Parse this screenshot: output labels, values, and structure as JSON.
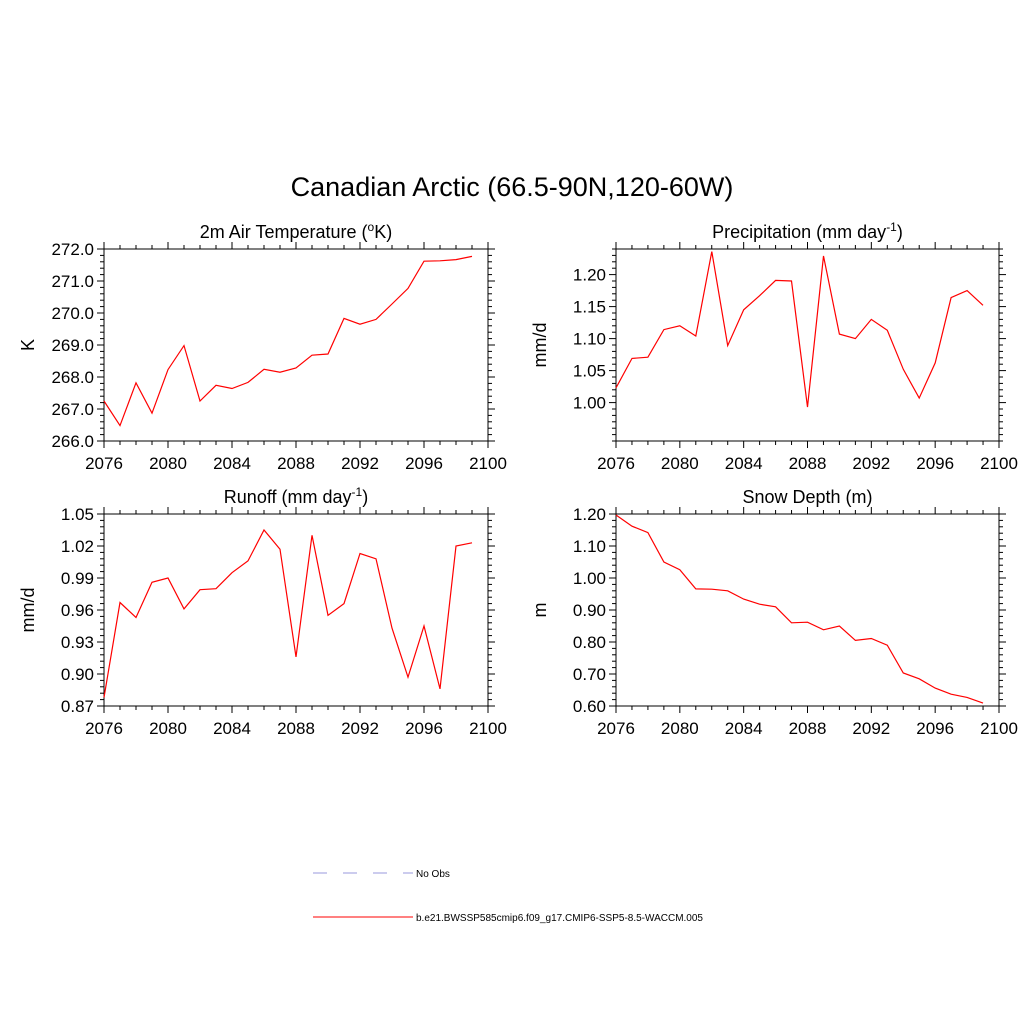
{
  "main_title": "Canadian Arctic (66.5-90N,120-60W)",
  "line_color": "#ff0000",
  "obs_color": "#9999dd",
  "chart_data": [
    {
      "type": "line",
      "title": "2m Air Temperature (°K)",
      "title_parts": [
        "2m Air Temperature (",
        "o",
        "K)"
      ],
      "ylabel": "K",
      "xlim": [
        2076,
        2100
      ],
      "ylim": [
        266.0,
        272.0
      ],
      "xticks": [
        2076,
        2080,
        2084,
        2088,
        2092,
        2096,
        2100
      ],
      "yticks": [
        "266.0",
        "267.0",
        "268.0",
        "269.0",
        "270.0",
        "271.0",
        "272.0"
      ],
      "ytick_values": [
        266,
        267,
        268,
        269,
        270,
        271,
        272
      ],
      "x": [
        2076,
        2077,
        2078,
        2079,
        2080,
        2081,
        2082,
        2083,
        2084,
        2085,
        2086,
        2087,
        2088,
        2089,
        2090,
        2091,
        2092,
        2093,
        2094,
        2095,
        2096,
        2097,
        2098,
        2099
      ],
      "series": [
        {
          "name": "b.e21.BWSSP585cmip6.f09_g17.CMIP6-SSP5-8.5-WACCM.005",
          "values": [
            267.25,
            266.48,
            267.82,
            266.87,
            268.23,
            268.98,
            267.25,
            267.74,
            267.64,
            267.83,
            268.24,
            268.15,
            268.28,
            268.68,
            268.72,
            269.83,
            269.65,
            269.8,
            270.28,
            270.77,
            271.62,
            271.63,
            271.67,
            271.77
          ]
        }
      ]
    },
    {
      "type": "line",
      "title": "Precipitation (mm day-1)",
      "title_parts": [
        "Precipitation (mm day",
        "-1",
        ")"
      ],
      "ylabel": "mm/d",
      "xlim": [
        2076,
        2100
      ],
      "ylim": [
        0.94,
        1.24
      ],
      "xticks": [
        2076,
        2080,
        2084,
        2088,
        2092,
        2096,
        2100
      ],
      "yticks": [
        "1.00",
        "1.05",
        "1.10",
        "1.15",
        "1.20"
      ],
      "ytick_values": [
        1.0,
        1.05,
        1.1,
        1.15,
        1.2
      ],
      "x": [
        2076,
        2077,
        2078,
        2079,
        2080,
        2081,
        2082,
        2083,
        2084,
        2085,
        2086,
        2087,
        2088,
        2089,
        2090,
        2091,
        2092,
        2093,
        2094,
        2095,
        2096,
        2097,
        2098,
        2099
      ],
      "series": [
        {
          "name": "b.e21.BWSSP585cmip6.f09_g17.CMIP6-SSP5-8.5-WACCM.005",
          "values": [
            1.023,
            1.069,
            1.071,
            1.114,
            1.12,
            1.104,
            1.236,
            1.089,
            1.145,
            1.167,
            1.191,
            1.19,
            0.993,
            1.229,
            1.107,
            1.1,
            1.13,
            1.113,
            1.052,
            1.007,
            1.062,
            1.164,
            1.175,
            1.152
          ]
        }
      ]
    },
    {
      "type": "line",
      "title": "Runoff (mm day-1)",
      "title_parts": [
        "Runoff (mm day",
        "-1",
        ")"
      ],
      "ylabel": "mm/d",
      "xlim": [
        2076,
        2100
      ],
      "ylim": [
        0.87,
        1.05
      ],
      "xticks": [
        2076,
        2080,
        2084,
        2088,
        2092,
        2096,
        2100
      ],
      "yticks": [
        "0.87",
        "0.90",
        "0.93",
        "0.96",
        "0.99",
        "1.02",
        "1.05"
      ],
      "ytick_values": [
        0.87,
        0.9,
        0.93,
        0.96,
        0.99,
        1.02,
        1.05
      ],
      "x": [
        2076,
        2077,
        2078,
        2079,
        2080,
        2081,
        2082,
        2083,
        2084,
        2085,
        2086,
        2087,
        2088,
        2089,
        2090,
        2091,
        2092,
        2093,
        2094,
        2095,
        2096,
        2097,
        2098,
        2099
      ],
      "series": [
        {
          "name": "b.e21.BWSSP585cmip6.f09_g17.CMIP6-SSP5-8.5-WACCM.005",
          "values": [
            0.878,
            0.967,
            0.953,
            0.986,
            0.99,
            0.961,
            0.979,
            0.98,
            0.995,
            1.006,
            1.035,
            1.017,
            0.916,
            1.03,
            0.955,
            0.966,
            1.013,
            1.008,
            0.943,
            0.897,
            0.945,
            0.886,
            1.02,
            1.023
          ]
        }
      ]
    },
    {
      "type": "line",
      "title": "Snow Depth (m)",
      "title_parts": [
        "Snow Depth (m)",
        "",
        ""
      ],
      "ylabel": "m",
      "xlim": [
        2076,
        2100
      ],
      "ylim": [
        0.6,
        1.2
      ],
      "xticks": [
        2076,
        2080,
        2084,
        2088,
        2092,
        2096,
        2100
      ],
      "yticks": [
        "0.60",
        "0.70",
        "0.80",
        "0.90",
        "1.00",
        "1.10",
        "1.20"
      ],
      "ytick_values": [
        0.6,
        0.7,
        0.8,
        0.9,
        1.0,
        1.1,
        1.2
      ],
      "x": [
        2076,
        2077,
        2078,
        2079,
        2080,
        2081,
        2082,
        2083,
        2084,
        2085,
        2086,
        2087,
        2088,
        2089,
        2090,
        2091,
        2092,
        2093,
        2094,
        2095,
        2096,
        2097,
        2098,
        2099
      ],
      "series": [
        {
          "name": "b.e21.BWSSP585cmip6.f09_g17.CMIP6-SSP5-8.5-WACCM.005",
          "values": [
            1.197,
            1.162,
            1.142,
            1.05,
            1.026,
            0.966,
            0.965,
            0.96,
            0.934,
            0.918,
            0.91,
            0.86,
            0.862,
            0.838,
            0.85,
            0.805,
            0.811,
            0.79,
            0.703,
            0.685,
            0.656,
            0.637,
            0.627,
            0.609
          ]
        }
      ]
    }
  ],
  "legend": {
    "obs_label": "No Obs",
    "model_label": "b.e21.BWSSP585cmip6.f09_g17.CMIP6-SSP5-8.5-WACCM.005"
  }
}
